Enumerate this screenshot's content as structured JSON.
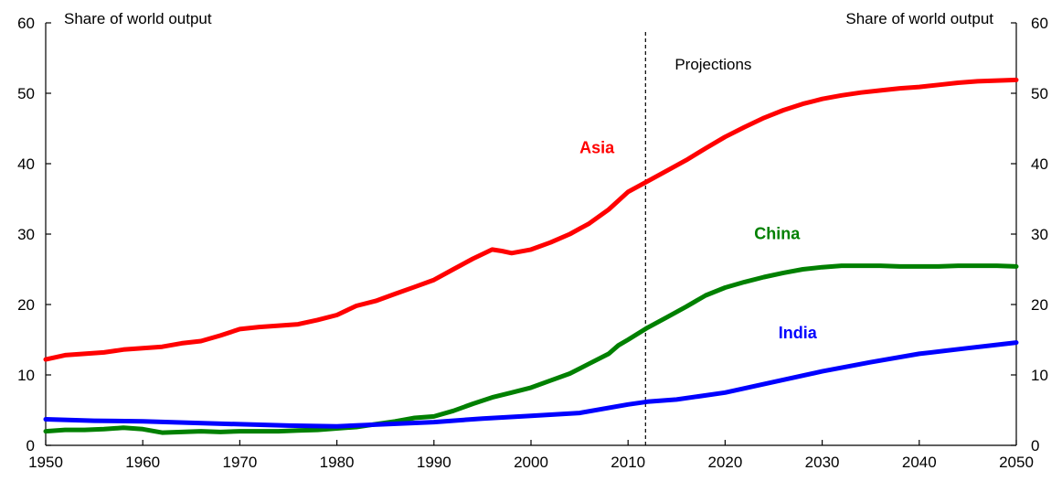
{
  "chart_data": {
    "type": "line",
    "left_axis_label": "Share of world output",
    "right_axis_label": "Share of world output",
    "projection_label": "Projections",
    "projection_start": 2011.8,
    "xlim": [
      1950,
      2050
    ],
    "ylim": [
      0,
      60
    ],
    "x_ticks": [
      "1950",
      "1960",
      "1970",
      "1980",
      "1990",
      "2000",
      "2010",
      "2020",
      "2030",
      "2040",
      "2050"
    ],
    "y_ticks": [
      "0",
      "10",
      "20",
      "30",
      "40",
      "50",
      "60"
    ],
    "grid": false,
    "colors": {
      "Asia": "#ff0000",
      "China": "#008000",
      "India": "#0000ff"
    },
    "series": [
      {
        "name": "Asia",
        "label_x": 2005,
        "label_y": 41.5,
        "x": [
          1950,
          1952,
          1954,
          1956,
          1958,
          1960,
          1962,
          1964,
          1966,
          1968,
          1970,
          1972,
          1974,
          1976,
          1978,
          1980,
          1982,
          1984,
          1986,
          1988,
          1990,
          1992,
          1994,
          1996,
          1997,
          1998,
          2000,
          2002,
          2004,
          2006,
          2008,
          2010,
          2012,
          2014,
          2016,
          2018,
          2020,
          2022,
          2024,
          2026,
          2028,
          2030,
          2032,
          2034,
          2036,
          2038,
          2040,
          2042,
          2044,
          2046,
          2048,
          2050
        ],
        "values": [
          12.2,
          12.8,
          13.0,
          13.2,
          13.6,
          13.8,
          14.0,
          14.5,
          14.8,
          15.6,
          16.5,
          16.8,
          17.0,
          17.2,
          17.8,
          18.5,
          19.8,
          20.5,
          21.5,
          22.5,
          23.5,
          25.0,
          26.5,
          27.8,
          27.6,
          27.3,
          27.8,
          28.8,
          30.0,
          31.5,
          33.5,
          36.0,
          37.5,
          39.0,
          40.5,
          42.2,
          43.8,
          45.2,
          46.5,
          47.6,
          48.5,
          49.2,
          49.7,
          50.1,
          50.4,
          50.7,
          50.9,
          51.2,
          51.5,
          51.7,
          51.8,
          51.9
        ]
      },
      {
        "name": "China",
        "label_x": 2023,
        "label_y": 29.3,
        "x": [
          1950,
          1952,
          1954,
          1956,
          1958,
          1960,
          1962,
          1964,
          1966,
          1968,
          1970,
          1972,
          1974,
          1976,
          1978,
          1980,
          1982,
          1984,
          1986,
          1988,
          1990,
          1992,
          1994,
          1996,
          1998,
          2000,
          2002,
          2004,
          2006,
          2008,
          2009,
          2010,
          2012,
          2014,
          2016,
          2018,
          2020,
          2022,
          2024,
          2026,
          2028,
          2030,
          2032,
          2034,
          2036,
          2038,
          2040,
          2042,
          2044,
          2046,
          2048,
          2050
        ],
        "values": [
          2.0,
          2.2,
          2.2,
          2.3,
          2.5,
          2.3,
          1.8,
          1.9,
          2.0,
          1.9,
          2.0,
          2.0,
          2.0,
          2.1,
          2.2,
          2.4,
          2.6,
          3.0,
          3.4,
          3.9,
          4.1,
          4.9,
          5.9,
          6.8,
          7.5,
          8.2,
          9.2,
          10.2,
          11.6,
          13.0,
          14.2,
          15.0,
          16.7,
          18.2,
          19.7,
          21.3,
          22.4,
          23.2,
          23.9,
          24.5,
          25.0,
          25.3,
          25.5,
          25.5,
          25.5,
          25.4,
          25.4,
          25.4,
          25.5,
          25.5,
          25.5,
          25.4
        ]
      },
      {
        "name": "India",
        "label_x": 2025.5,
        "label_y": 15.2,
        "x": [
          1950,
          1955,
          1960,
          1965,
          1970,
          1975,
          1980,
          1985,
          1990,
          1995,
          2000,
          2005,
          2010,
          2012,
          2015,
          2020,
          2025,
          2030,
          2035,
          2040,
          2045,
          2050
        ],
        "values": [
          3.7,
          3.5,
          3.4,
          3.2,
          3.0,
          2.8,
          2.7,
          3.0,
          3.3,
          3.8,
          4.2,
          4.6,
          5.8,
          6.2,
          6.5,
          7.5,
          9.0,
          10.5,
          11.8,
          13.0,
          13.8,
          14.6
        ]
      }
    ]
  }
}
